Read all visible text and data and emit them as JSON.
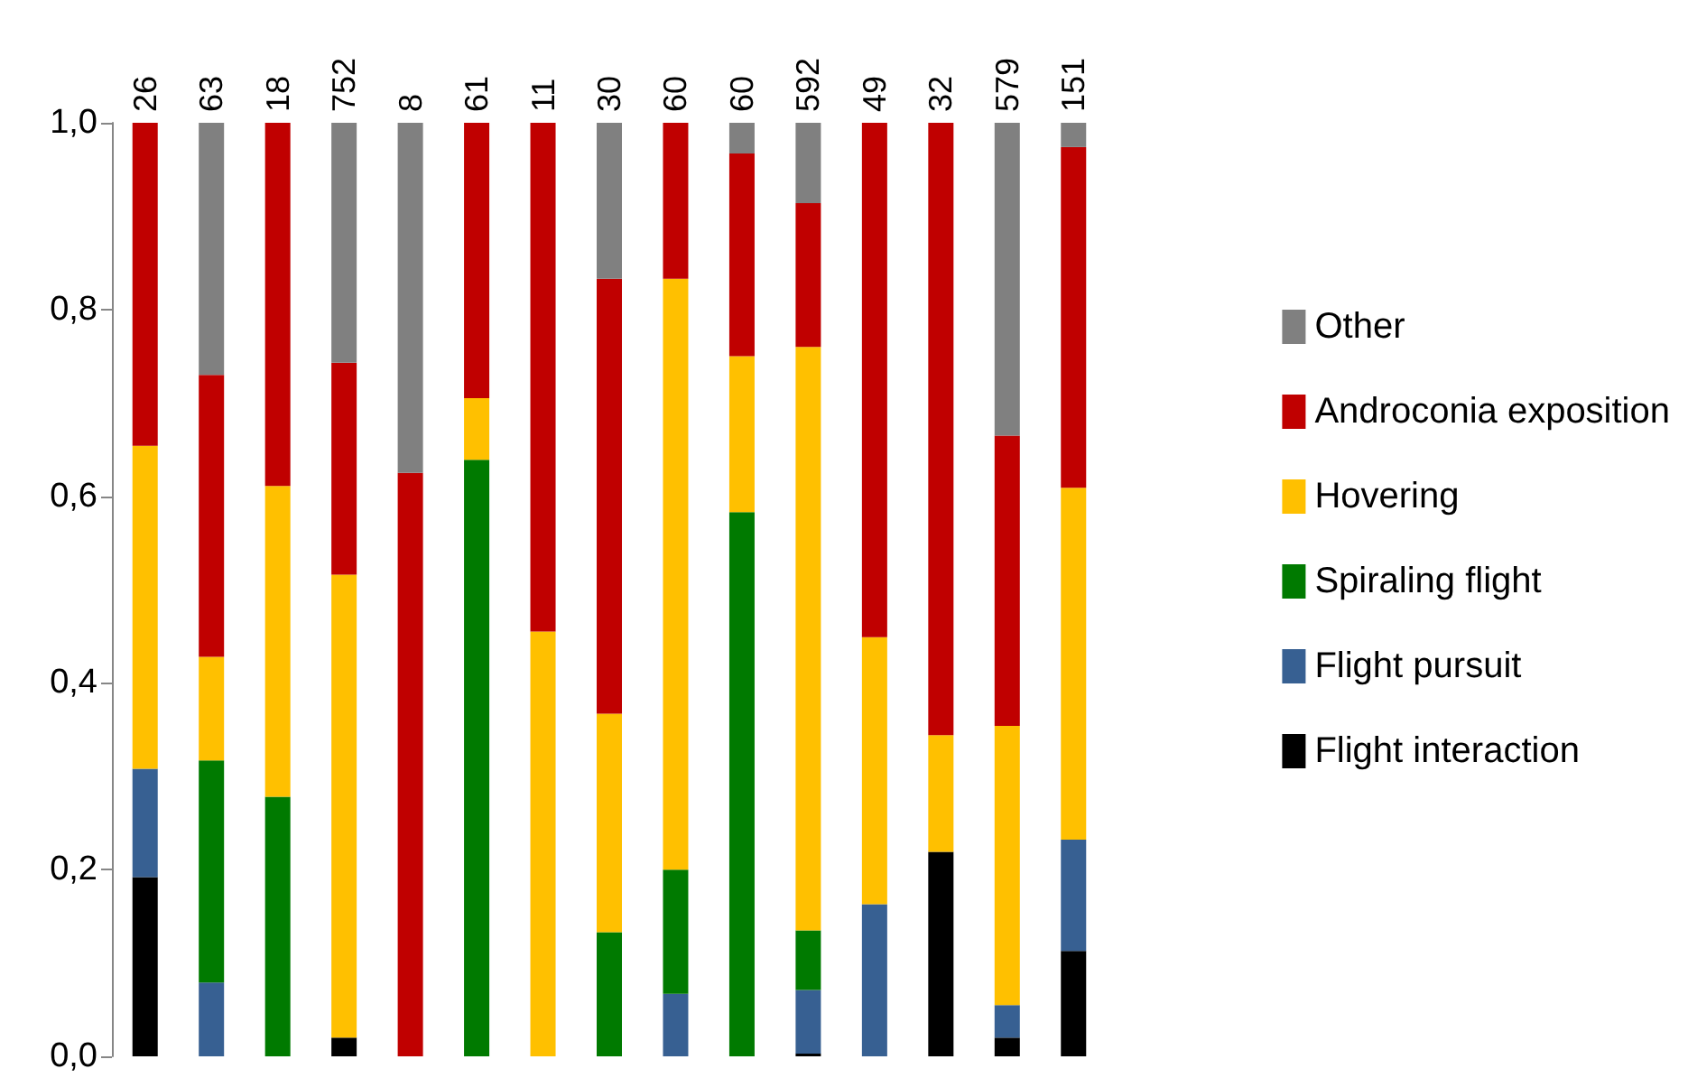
{
  "chart_data": {
    "type": "bar",
    "stacked": true,
    "categories": [
      "26",
      "63",
      "18",
      "752",
      "8",
      "61",
      "11",
      "30",
      "60",
      "60",
      "592",
      "49",
      "32",
      "579",
      "151"
    ],
    "series": [
      {
        "name": "Flight interaction",
        "color": "#000000",
        "values": [
          0.192,
          0,
          0,
          0.02,
          0,
          0,
          0,
          0,
          0,
          0,
          0.003,
          0,
          0.219,
          0.02,
          0.113
        ]
      },
      {
        "name": "Flight pursuit",
        "color": "#376092",
        "values": [
          0.116,
          0.079,
          0,
          0,
          0,
          0,
          0,
          0,
          0.067,
          0,
          0.068,
          0.163,
          0,
          0.035,
          0.119
        ]
      },
      {
        "name": "Spiraling flight",
        "color": "#007a00",
        "values": [
          0,
          0.238,
          0.278,
          0,
          0,
          0.639,
          0,
          0.133,
          0.133,
          0.583,
          0.064,
          0,
          0,
          0,
          0
        ]
      },
      {
        "name": "Hovering",
        "color": "#ffc000",
        "values": [
          0.346,
          0.111,
          0.333,
          0.496,
          0,
          0.066,
          0.455,
          0.234,
          0.633,
          0.167,
          0.625,
          0.286,
          0.125,
          0.299,
          0.377
        ]
      },
      {
        "name": "Androconia exposition",
        "color": "#c00000",
        "values": [
          0.346,
          0.302,
          0.389,
          0.227,
          0.625,
          0.295,
          0.545,
          0.466,
          0.167,
          0.217,
          0.154,
          0.551,
          0.656,
          0.311,
          0.365
        ]
      },
      {
        "name": "Other",
        "color": "#808080",
        "values": [
          0,
          0.27,
          0,
          0.257,
          0.375,
          0,
          0,
          0.167,
          0,
          0.033,
          0.086,
          0,
          0,
          0.335,
          0.026
        ]
      }
    ],
    "ylim": [
      0,
      1
    ],
    "yticks": [
      {
        "value": 0,
        "label": "0,0"
      },
      {
        "value": 0.2,
        "label": "0,2"
      },
      {
        "value": 0.4,
        "label": "0,4"
      },
      {
        "value": 0.6,
        "label": "0,6"
      },
      {
        "value": 0.8,
        "label": "0,8"
      },
      {
        "value": 1,
        "label": "1,0"
      }
    ],
    "grid": false,
    "legend": "right"
  }
}
